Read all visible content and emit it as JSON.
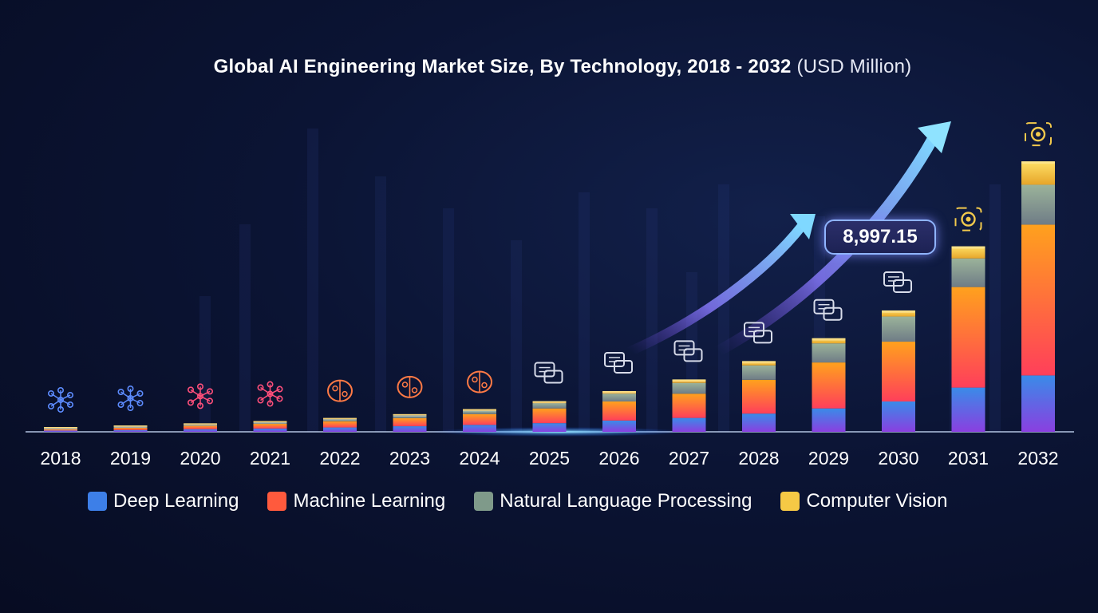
{
  "title": "Global AI Engineering Market Size, By Technology, 2018 - 2032",
  "title_unit": "(USD Million)",
  "callout": "8,997.15",
  "colors": {
    "deep_learning": "#6f45e6",
    "machine_learning": "#ff5a3d",
    "nlp": "#8f9e94",
    "computer_vision": "#f6c945"
  },
  "legend": [
    {
      "label": "Deep Learning",
      "color": "#3d7fe8"
    },
    {
      "label": "Machine Learning",
      "color": "#ff5a3d"
    },
    {
      "label": "Natural Language Processing",
      "color": "#7f9a8a"
    },
    {
      "label": "Computer Vision",
      "color": "#f6c945"
    }
  ],
  "chart_data": {
    "type": "bar",
    "stacked": true,
    "title": "Global AI Engineering Market Size, By Technology, 2018 - 2032 (USD Million)",
    "categories": [
      "2018",
      "2019",
      "2020",
      "2021",
      "2022",
      "2023",
      "2024",
      "2025",
      "2026",
      "2027",
      "2028",
      "2029",
      "2030",
      "2031",
      "2032"
    ],
    "ylim": [
      0,
      18000
    ],
    "series": [
      {
        "name": "Deep Learning",
        "values": [
          50,
          100,
          150,
          190,
          250,
          320,
          400,
          500,
          650,
          800,
          1050,
          1350,
          1750,
          2550,
          3250
        ]
      },
      {
        "name": "Machine Learning",
        "values": [
          70,
          130,
          200,
          270,
          360,
          470,
          620,
          850,
          1100,
          1400,
          1950,
          2650,
          3450,
          5800,
          8700
        ]
      },
      {
        "name": "Natural Language Processing",
        "values": [
          30,
          50,
          70,
          90,
          120,
          160,
          200,
          300,
          450,
          620,
          830,
          1100,
          1450,
          1650,
          2300
        ]
      },
      {
        "name": "Computer Vision",
        "values": [
          15,
          20,
          30,
          40,
          50,
          70,
          90,
          120,
          150,
          200,
          250,
          300,
          350,
          700,
          1350
        ]
      }
    ],
    "legend_position": "bottom",
    "grid": false
  }
}
